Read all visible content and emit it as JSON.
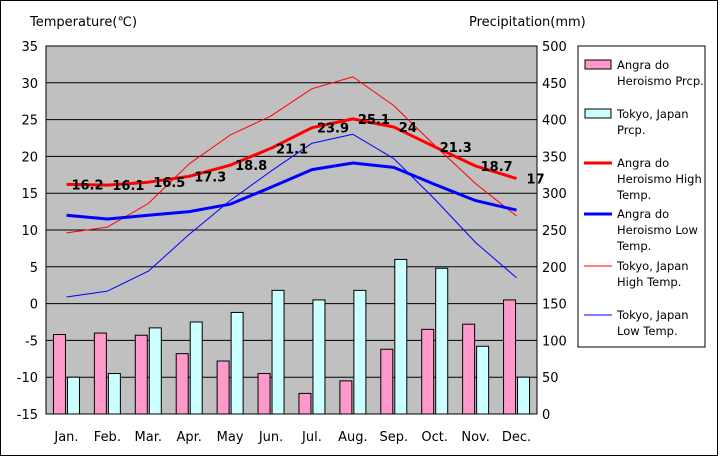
{
  "chart_data": {
    "type": "bar",
    "left_axis_title": "Temperature(℃)",
    "right_axis_title": "Precipitation(mm)",
    "categories": [
      "Jan.",
      "Feb.",
      "Mar.",
      "Apr.",
      "May",
      "Jun.",
      "Jul.",
      "Aug.",
      "Sep.",
      "Oct.",
      "Nov.",
      "Dec."
    ],
    "temp_ylim": [
      -15,
      35
    ],
    "temp_ticks": [
      35,
      30,
      25,
      20,
      15,
      10,
      5,
      0,
      -5,
      -10,
      -15
    ],
    "precip_ylim": [
      0,
      500
    ],
    "precip_ticks": [
      500,
      450,
      400,
      350,
      300,
      250,
      200,
      150,
      100,
      50,
      0
    ],
    "grid": true,
    "legend_position": "right",
    "bar_series": [
      {
        "name": "Angra do Heroismo Prcp.",
        "color": "#ff99cc",
        "values": [
          108,
          110,
          107,
          82,
          72,
          55,
          28,
          45,
          88,
          115,
          122,
          155
        ]
      },
      {
        "name": "Tokyo, Japan Prcp.",
        "color": "#ccffff",
        "values": [
          50,
          55,
          117,
          125,
          138,
          168,
          155,
          168,
          210,
          198,
          92,
          50
        ]
      }
    ],
    "line_series": [
      {
        "name": "Angra do Heroismo High Temp.",
        "color": "#ff0000",
        "width": 3,
        "values": [
          16.2,
          16.1,
          16.5,
          17.3,
          18.8,
          21.1,
          23.9,
          25.1,
          24,
          21.3,
          18.7,
          17
        ],
        "labels": [
          "16.2",
          "16.1",
          "16.5",
          "17.3",
          "18.8",
          "21.1",
          "23.9",
          "25.1",
          "24",
          "21.3",
          "18.7",
          "17"
        ]
      },
      {
        "name": "Angra do Heroismo Low Temp.",
        "color": "#0000ff",
        "width": 3,
        "values": [
          12,
          11.5,
          12,
          12.5,
          13.5,
          15.8,
          18.2,
          19.1,
          18.5,
          16.2,
          14,
          12.7
        ]
      },
      {
        "name": "Tokyo, Japan High Temp.",
        "color": "#ff0000",
        "width": 1,
        "values": [
          9.6,
          10.4,
          13.6,
          19,
          22.9,
          25.5,
          29.2,
          30.8,
          26.9,
          21.5,
          16.3,
          11.9
        ]
      },
      {
        "name": "Tokyo, Japan Low Temp.",
        "color": "#0000ff",
        "width": 1,
        "values": [
          0.9,
          1.7,
          4.4,
          9.4,
          14,
          18,
          21.8,
          23,
          19.7,
          14.2,
          8.3,
          3.5
        ]
      }
    ],
    "legend": [
      {
        "lines": [
          "Angra do",
          "Heroismo Prcp."
        ],
        "kind": "box",
        "color": "#ff99cc"
      },
      {
        "lines": [
          "Tokyo, Japan",
          "Prcp."
        ],
        "kind": "box",
        "color": "#ccffff"
      },
      {
        "lines": [
          "Angra do",
          "Heroismo High",
          "Temp."
        ],
        "kind": "line",
        "color": "#ff0000",
        "width": 3
      },
      {
        "lines": [
          "Angra do",
          "Heroismo Low",
          "Temp."
        ],
        "kind": "line",
        "color": "#0000ff",
        "width": 3
      },
      {
        "lines": [
          "Tokyo, Japan",
          "High Temp."
        ],
        "kind": "line",
        "color": "#ff0000",
        "width": 1
      },
      {
        "lines": [
          "Tokyo, Japan",
          "Low Temp."
        ],
        "kind": "line",
        "color": "#0000ff",
        "width": 1
      }
    ]
  }
}
